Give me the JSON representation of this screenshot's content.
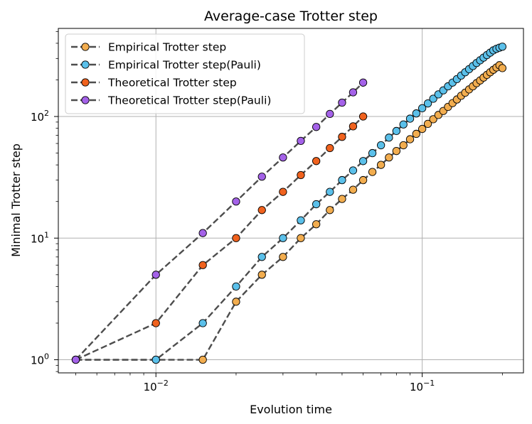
{
  "chart_data": {
    "type": "line",
    "title": "Average-case Trotter step",
    "xlabel": "Evolution time",
    "ylabel": "Minimal Trotter step",
    "xscale": "log",
    "yscale": "log",
    "xlim": [
      0.0043,
      0.24
    ],
    "ylim": [
      0.78,
      530
    ],
    "x_ticks": [
      {
        "value": 0.01,
        "base": "10",
        "exp": "−2"
      },
      {
        "value": 0.1,
        "base": "10",
        "exp": "−1"
      }
    ],
    "y_ticks": [
      {
        "value": 1,
        "base": "10",
        "exp": "0"
      },
      {
        "value": 10,
        "base": "10",
        "exp": "1"
      },
      {
        "value": 100,
        "base": "10",
        "exp": "2"
      }
    ],
    "grid": true,
    "legend_position": "top-left",
    "line_style": "dashed",
    "line_color": "#4d4d4d",
    "series": [
      {
        "name": "Empirical Trotter step",
        "color": "#f2ad4f",
        "points": [
          [
            0.005,
            1
          ],
          [
            0.01,
            1
          ],
          [
            0.015,
            1
          ],
          [
            0.02,
            3
          ],
          [
            0.025,
            5
          ],
          [
            0.03,
            7
          ],
          [
            0.035,
            10
          ],
          [
            0.04,
            13
          ],
          [
            0.045,
            17
          ],
          [
            0.05,
            21
          ],
          [
            0.055,
            25
          ],
          [
            0.06,
            30
          ],
          [
            0.065,
            35
          ],
          [
            0.07,
            40
          ],
          [
            0.075,
            46
          ],
          [
            0.08,
            52
          ],
          [
            0.085,
            58
          ],
          [
            0.09,
            65
          ],
          [
            0.095,
            72
          ],
          [
            0.1,
            79
          ],
          [
            0.105,
            87
          ],
          [
            0.11,
            95
          ],
          [
            0.115,
            103
          ],
          [
            0.12,
            111
          ],
          [
            0.125,
            120
          ],
          [
            0.13,
            129
          ],
          [
            0.135,
            138
          ],
          [
            0.14,
            148
          ],
          [
            0.145,
            157
          ],
          [
            0.15,
            167
          ],
          [
            0.155,
            177
          ],
          [
            0.16,
            188
          ],
          [
            0.165,
            198
          ],
          [
            0.17,
            209
          ],
          [
            0.175,
            220
          ],
          [
            0.18,
            231
          ],
          [
            0.185,
            242
          ],
          [
            0.19,
            253
          ],
          [
            0.195,
            264
          ],
          [
            0.2,
            250
          ]
        ]
      },
      {
        "name": "Empirical Trotter step(Pauli)",
        "color": "#5bc0ea",
        "points": [
          [
            0.005,
            1
          ],
          [
            0.01,
            1
          ],
          [
            0.015,
            2
          ],
          [
            0.02,
            4
          ],
          [
            0.025,
            7
          ],
          [
            0.03,
            10
          ],
          [
            0.035,
            14
          ],
          [
            0.04,
            19
          ],
          [
            0.045,
            24
          ],
          [
            0.05,
            30
          ],
          [
            0.055,
            36
          ],
          [
            0.06,
            43
          ],
          [
            0.065,
            50
          ],
          [
            0.07,
            58
          ],
          [
            0.075,
            67
          ],
          [
            0.08,
            76
          ],
          [
            0.085,
            86
          ],
          [
            0.09,
            96
          ],
          [
            0.095,
            106
          ],
          [
            0.1,
            117
          ],
          [
            0.105,
            128
          ],
          [
            0.11,
            140
          ],
          [
            0.115,
            152
          ],
          [
            0.12,
            164
          ],
          [
            0.125,
            177
          ],
          [
            0.13,
            190
          ],
          [
            0.135,
            203
          ],
          [
            0.14,
            217
          ],
          [
            0.145,
            231
          ],
          [
            0.15,
            245
          ],
          [
            0.155,
            260
          ],
          [
            0.16,
            275
          ],
          [
            0.165,
            290
          ],
          [
            0.17,
            305
          ],
          [
            0.175,
            320
          ],
          [
            0.18,
            335
          ],
          [
            0.185,
            350
          ],
          [
            0.19,
            360
          ],
          [
            0.195,
            368
          ],
          [
            0.2,
            375
          ]
        ]
      },
      {
        "name": "Theoretical Trotter step",
        "color": "#f0621e",
        "points": [
          [
            0.005,
            1
          ],
          [
            0.01,
            2
          ],
          [
            0.015,
            6
          ],
          [
            0.02,
            10
          ],
          [
            0.025,
            17
          ],
          [
            0.03,
            24
          ],
          [
            0.035,
            33
          ],
          [
            0.04,
            43
          ],
          [
            0.045,
            55
          ],
          [
            0.05,
            68
          ],
          [
            0.055,
            83
          ],
          [
            0.06,
            100
          ]
        ]
      },
      {
        "name": "Theoretical Trotter step(Pauli)",
        "color": "#a462e8",
        "points": [
          [
            0.005,
            1
          ],
          [
            0.01,
            5
          ],
          [
            0.015,
            11
          ],
          [
            0.02,
            20
          ],
          [
            0.025,
            32
          ],
          [
            0.03,
            46
          ],
          [
            0.035,
            63
          ],
          [
            0.04,
            82
          ],
          [
            0.045,
            105
          ],
          [
            0.05,
            130
          ],
          [
            0.055,
            158
          ],
          [
            0.06,
            190
          ]
        ]
      }
    ]
  }
}
